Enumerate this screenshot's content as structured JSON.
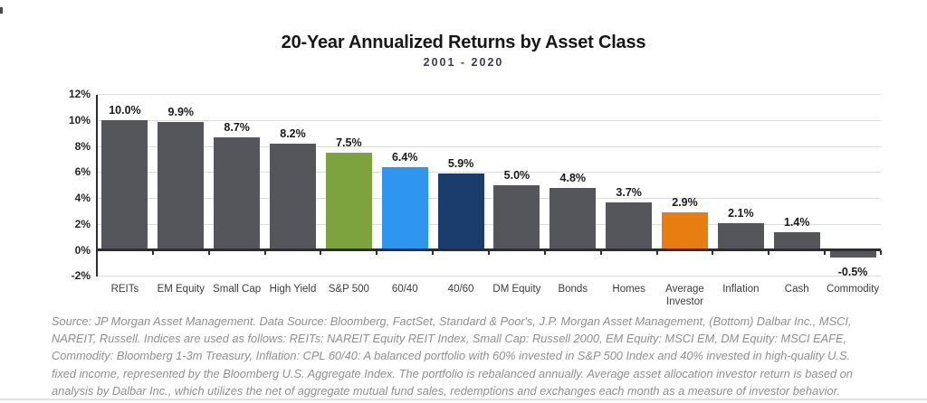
{
  "page": {
    "source_lines": [
      "Source: JP Morgan Asset Management. Data Source: Bloomberg, FactSet, Standard & Poor's, J.P. Morgan Asset Management, (Bottom) Dalbar Inc., MSCI,",
      "NAREIT, Russell. Indices are used as follows: REITs: NAREIT Equity REIT Index, Small Cap: Russell 2000, EM Equity: MSCI EM, DM Equity: MSCI EAFE,",
      "Commodity: Bloomberg 1-3m Treasury, Inflation: CPL 60/40: A balanced portfolio with 60% invested in S&P 500 Index and 40% invested in high-quality U.S.",
      "fixed income, represented by the Bloomberg U.S. Aggregate Index. The portfolio is rebalanced annually. Average asset allocation investor return is based on",
      "analysis by Dalbar Inc., which utilizes the net of aggregate mutual fund sales, redemptions and exchanges each month as a measure of investor behavior."
    ]
  },
  "chart_data": {
    "type": "bar",
    "title": "20-Year Annualized Returns by Asset Class",
    "subtitle": "2001 - 2020",
    "categories": [
      "REITs",
      "EM Equity",
      "Small Cap",
      "High Yield",
      "S&P 500",
      "60/40",
      "40/60",
      "DM Equity",
      "Bonds",
      "Homes",
      "Average Investor",
      "Inflation",
      "Cash",
      "Commodity"
    ],
    "values": [
      10.0,
      9.9,
      8.7,
      8.2,
      7.5,
      6.4,
      5.9,
      5.0,
      4.8,
      3.7,
      2.9,
      2.1,
      1.4,
      -0.5
    ],
    "value_labels": [
      "10.0%",
      "9.9%",
      "8.7%",
      "8.2%",
      "7.5%",
      "6.4%",
      "5.9%",
      "5.0%",
      "4.8%",
      "3.7%",
      "2.9%",
      "2.1%",
      "1.4%",
      "-0.5%"
    ],
    "bar_colors": [
      "#54565B",
      "#54565B",
      "#54565B",
      "#54565B",
      "#7CA33D",
      "#2F96F0",
      "#1B3D6D",
      "#54565B",
      "#54565B",
      "#54565B",
      "#E87E11",
      "#54565B",
      "#54565B",
      "#54565B"
    ],
    "color_legend": {
      "default_gray": "#54565B",
      "sp500_green": "#7CA33D",
      "portfolio_60_40_blue": "#2F96F0",
      "portfolio_40_60_navy": "#1B3D6D",
      "average_investor_orange": "#E87E11"
    },
    "xlabel": "",
    "ylabel": "",
    "ylim": [
      -2,
      12
    ],
    "yticks": [
      12,
      10,
      8,
      6,
      4,
      2,
      0,
      -2
    ],
    "ytick_labels": [
      "12%",
      "10%",
      "8%",
      "6%",
      "4%",
      "2%",
      "0%",
      "-2%"
    ],
    "grid": true,
    "legend_position": "none"
  }
}
